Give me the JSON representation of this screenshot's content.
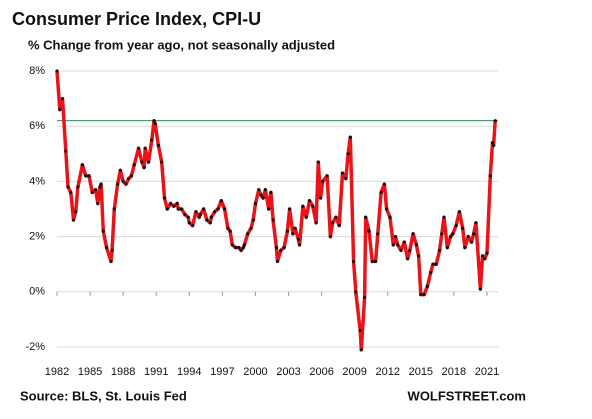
{
  "chart_data": {
    "type": "line",
    "title": "Consumer  Price Index, CPI-U",
    "subtitle": "% Change from year ago, not seasonally adjusted",
    "source": "Source: BLS, St. Louis Fed",
    "brand": "WOLFSTREET.com",
    "color": "#e8141a",
    "marker_color": "#111111",
    "grid": true,
    "xlim": [
      1982,
      2022
    ],
    "xticks": [
      1982,
      1985,
      1988,
      1991,
      1994,
      1997,
      2000,
      2003,
      2006,
      2009,
      2012,
      2015,
      2018,
      2021
    ],
    "ylim": [
      -2,
      8
    ],
    "yticks": [
      {
        "value": -2,
        "label": "-2%"
      },
      {
        "value": 0,
        "label": "0%"
      },
      {
        "value": 2,
        "label": "2%"
      },
      {
        "value": 4,
        "label": "4%"
      },
      {
        "value": 6,
        "label": "6%"
      },
      {
        "value": 8,
        "label": "8%"
      }
    ],
    "reference_line": {
      "value": 6.2,
      "color": "#2e8b57"
    },
    "x": [
      1982.0,
      1982.25,
      1982.5,
      1982.8,
      1983.0,
      1983.25,
      1983.5,
      1983.7,
      1983.9,
      1984.3,
      1984.6,
      1984.9,
      1985.2,
      1985.5,
      1985.7,
      1985.9,
      1986.0,
      1986.2,
      1986.5,
      1986.9,
      1987.0,
      1987.2,
      1987.5,
      1987.75,
      1988.0,
      1988.25,
      1988.5,
      1988.75,
      1989.0,
      1989.4,
      1989.7,
      1989.9,
      1990.0,
      1990.3,
      1990.6,
      1990.8,
      1990.9,
      1991.2,
      1991.5,
      1991.75,
      1992.0,
      1992.3,
      1992.6,
      1992.9,
      1993.0,
      1993.3,
      1993.6,
      1993.9,
      1994.0,
      1994.3,
      1994.6,
      1994.9,
      1995.0,
      1995.3,
      1995.6,
      1995.9,
      1996.0,
      1996.3,
      1996.6,
      1996.9,
      1997.2,
      1997.5,
      1997.7,
      1997.9,
      1998.2,
      1998.5,
      1998.7,
      1998.9,
      1999.0,
      1999.3,
      1999.6,
      1999.8,
      2000.0,
      2000.3,
      2000.5,
      2000.7,
      2000.9,
      2001.2,
      2001.4,
      2001.6,
      2001.9,
      2002.0,
      2002.3,
      2002.6,
      2002.9,
      2003.1,
      2003.4,
      2003.6,
      2003.9,
      2004.0,
      2004.3,
      2004.6,
      2004.9,
      2005.2,
      2005.5,
      2005.7,
      2005.9,
      2006.1,
      2006.5,
      2006.8,
      2007.0,
      2007.3,
      2007.6,
      2007.9,
      2008.2,
      2008.4,
      2008.6,
      2008.9,
      2009.1,
      2009.5,
      2009.6,
      2009.9,
      2010.0,
      2010.3,
      2010.6,
      2010.9,
      2011.1,
      2011.4,
      2011.7,
      2011.9,
      2012.2,
      2012.5,
      2012.7,
      2012.9,
      2013.2,
      2013.5,
      2013.8,
      2014.0,
      2014.3,
      2014.6,
      2014.8,
      2015.0,
      2015.3,
      2015.6,
      2015.9,
      2016.1,
      2016.4,
      2016.7,
      2016.9,
      2017.1,
      2017.4,
      2017.7,
      2017.9,
      2018.2,
      2018.5,
      2018.8,
      2019.0,
      2019.3,
      2019.6,
      2019.8,
      2020.0,
      2020.4,
      2020.6,
      2020.8,
      2021.0,
      2021.3,
      2021.5,
      2021.6,
      2021.75
    ],
    "values": [
      8.0,
      6.6,
      7.0,
      5.1,
      3.8,
      3.6,
      2.6,
      2.9,
      3.8,
      4.6,
      4.2,
      4.2,
      3.6,
      3.7,
      3.2,
      3.8,
      3.9,
      2.2,
      1.6,
      1.1,
      1.5,
      3.0,
      3.9,
      4.4,
      4.0,
      3.9,
      4.1,
      4.2,
      4.6,
      5.2,
      4.7,
      4.5,
      5.2,
      4.7,
      5.5,
      6.2,
      6.1,
      5.3,
      4.7,
      3.4,
      3.0,
      3.2,
      3.1,
      3.2,
      3.0,
      3.0,
      2.8,
      2.7,
      2.5,
      2.4,
      2.9,
      2.7,
      2.8,
      3.0,
      2.6,
      2.5,
      2.7,
      2.9,
      3.0,
      3.3,
      3.0,
      2.3,
      2.2,
      1.7,
      1.6,
      1.6,
      1.5,
      1.6,
      1.7,
      2.1,
      2.3,
      2.6,
      3.2,
      3.7,
      3.5,
      3.4,
      3.7,
      3.0,
      3.6,
      2.6,
      1.6,
      1.1,
      1.5,
      1.6,
      2.2,
      3.0,
      2.1,
      2.3,
      1.9,
      1.7,
      3.1,
      2.7,
      3.3,
      3.1,
      2.5,
      4.7,
      3.4,
      4.0,
      4.2,
      2.0,
      2.5,
      2.7,
      2.4,
      4.3,
      4.1,
      5.0,
      5.6,
      1.1,
      0.0,
      -1.4,
      -2.1,
      -0.2,
      2.7,
      2.2,
      1.1,
      1.1,
      2.1,
      3.6,
      3.9,
      3.0,
      2.7,
      1.7,
      2.0,
      1.7,
      1.5,
      1.8,
      1.2,
      1.5,
      2.1,
      1.7,
      1.3,
      -0.1,
      -0.1,
      0.2,
      0.7,
      1.0,
      1.0,
      1.5,
      2.1,
      2.7,
      1.6,
      2.0,
      2.1,
      2.4,
      2.9,
      2.3,
      1.6,
      2.0,
      1.8,
      2.1,
      2.5,
      0.1,
      1.3,
      1.2,
      1.4,
      4.2,
      5.4,
      5.3,
      6.2
    ]
  }
}
